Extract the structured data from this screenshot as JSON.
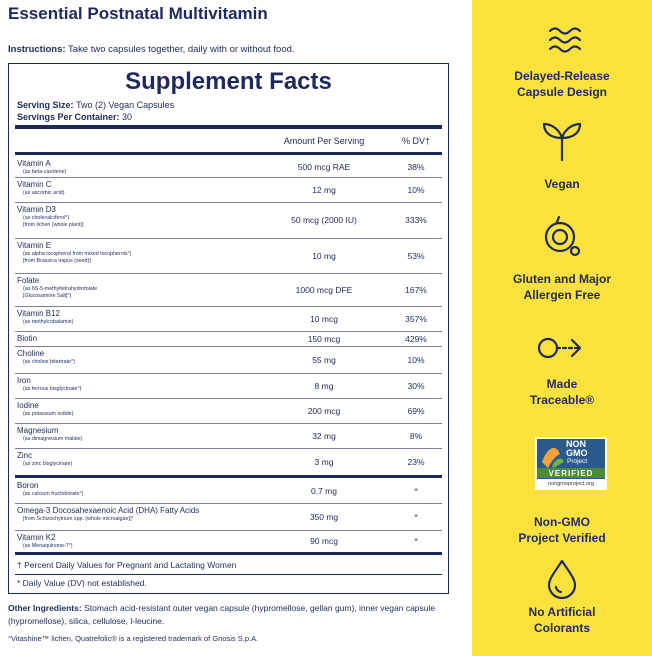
{
  "header": {
    "title": "Essential Postnatal Multivitamin",
    "instructions_label": "Instructions:",
    "instructions": "Take two capsules together, daily with or without food."
  },
  "facts": {
    "title": "Supplement Facts",
    "serving_size_label": "Serving Size:",
    "serving_size": "Two (2) Vegan Capsules",
    "servings_label": "Servings Per Container:",
    "servings": "30",
    "col_amount": "Amount Per Serving",
    "col_dv": "% DV†",
    "rows": [
      {
        "name": "Vitamin A",
        "sub": [
          "(as beta-carotene)"
        ],
        "amount": "500 mcg RAE",
        "dv": "38%"
      },
      {
        "name": "Vitamin C",
        "sub": [
          "(as ascorbic acid)"
        ],
        "amount": "12 mg",
        "dv": "10%"
      },
      {
        "name": "Vitamin D3",
        "sub": [
          "(as cholecalciferol°)",
          "[from lichen (whole plant)]"
        ],
        "amount": "50 mcg (2000 IU)",
        "dv": "333%"
      },
      {
        "name": "Vitamin E",
        "sub": [
          "(as alpha tocopherol from mixed tocopherols°)",
          "[from Brassica napus (seed)]"
        ],
        "amount": "10 mg",
        "dv": "53%"
      },
      {
        "name": "Folate",
        "sub": [
          "(as 6S-5-methyltetrahydrofolate",
          "[Glucosamine Salt]°)"
        ],
        "amount": "1000 mcg DFE",
        "dv": "167%"
      },
      {
        "name": "Vitamin B12",
        "sub": [
          "(as methylcobalamin)"
        ],
        "amount": "10 mcg",
        "dv": "357%"
      },
      {
        "name": "Biotin",
        "sub": [],
        "amount": "150 mcg",
        "dv": "429%"
      },
      {
        "name": "Choline",
        "sub": [
          "(as choline bitartrate°)"
        ],
        "amount": "55 mg",
        "dv": "10%"
      },
      {
        "name": "Iron",
        "sub": [
          "(as ferrous bisglycinate°)"
        ],
        "amount": "8 mg",
        "dv": "30%"
      },
      {
        "name": "Iodine",
        "sub": [
          "(as potassium iodide)"
        ],
        "amount": "200 mcg",
        "dv": "69%"
      },
      {
        "name": "Magnesium",
        "sub": [
          "(as dimagnesium malate)"
        ],
        "amount": "32 mg",
        "dv": "8%"
      },
      {
        "name": "Zinc",
        "sub": [
          "(as zinc bisglycinate)"
        ],
        "amount": "3 mg",
        "dv": "23%"
      },
      {
        "name": "Boron",
        "sub": [
          "(as calcium fructoborate°)"
        ],
        "amount": "0.7 mg",
        "dv": "*"
      },
      {
        "name": "Omega-3 Docosahexaenoic Acid (DHA) Fatty Acids",
        "sub": [
          "[from Schizochytrium spp. (whole microalgae)]°"
        ],
        "amount": "350 mg",
        "dv": "*"
      },
      {
        "name": "Vitamin K2",
        "sub": [
          "(as Menaquinone-7°)"
        ],
        "amount": "90 mcg",
        "dv": "*"
      }
    ],
    "footnote_dv": "† Percent Daily Values for Pregnant and Lactating Women",
    "footnote_star": "* Daily Value (DV) not established."
  },
  "other_ingredients_label": "Other Ingredients:",
  "other_ingredients": "Stomach acid-resistant outer vegan capsule (hypromellose, gellan gum), inner vegan capsule (hypromellose), silica, cellulose, l-leucine.",
  "trademark": "°Vitashine™ lichen, Quatrefolic® is a registered trademark of Gnosis S.p.A.",
  "features": [
    {
      "lines": [
        "Delayed-Release",
        "Capsule Design"
      ]
    },
    {
      "lines": [
        "Vegan"
      ]
    },
    {
      "lines": [
        "Gluten and Major",
        "Allergen Free"
      ]
    },
    {
      "lines": [
        "Made",
        "Traceable®"
      ]
    },
    {
      "lines": [
        "Non-GMO",
        "Project Verified"
      ]
    },
    {
      "lines": [
        "No Artificial",
        "Colorants"
      ]
    }
  ],
  "badge": {
    "line1": "NON",
    "line2": "GMO",
    "line3": "Project",
    "line4": "VERIFIED",
    "url": "nongmoproject.org"
  }
}
